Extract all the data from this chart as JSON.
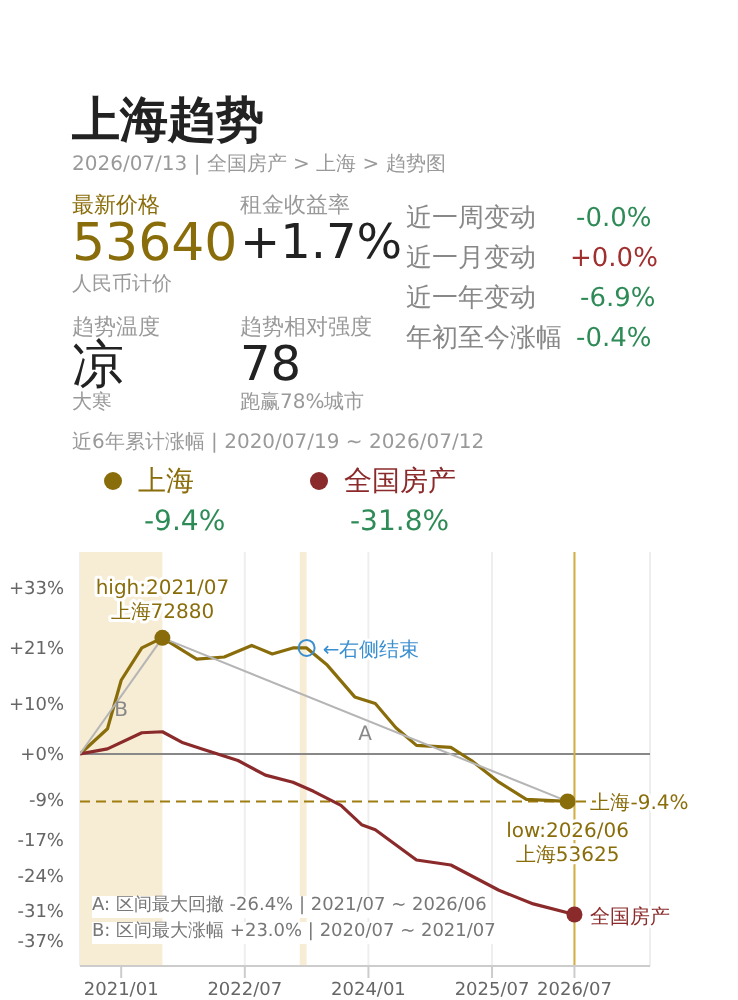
{
  "chart_data": {
    "type": "line",
    "title": "上海趋势",
    "subtitle": "2026/07/13 | 全国房产 > 上海 > 趋势图",
    "annotations": [
      "最新价格",
      "53640",
      "人民币计价",
      "租金收益率",
      "+1.7%",
      "趋势温度",
      "凉",
      "大寒",
      "趋势相对强度",
      "78",
      "跑赢78%城市",
      "近一周变动",
      "-0.0%",
      "近一月变动",
      "+0.0%",
      "近一年变动",
      "-6.9%",
      "年初至今涨幅",
      "-0.4%",
      "近6年累计涨幅 | 2020/07/19 ~ 2026/07/12",
      "-9.4%",
      "-31.8%",
      "A: 区间最大回撤 -26.4% | 2021/07 ~ 2026/06",
      "B: 区间最大涨幅 +23.0% | 2020/07 ~ 2021/07",
      {
        "text": "high:2021/07\n上海72880",
        "x": "2021-07",
        "y": 23
      },
      {
        "text": "←右侧结束",
        "x": "2023-04",
        "y": 21
      },
      {
        "text": "low:2026/06\n上海53625",
        "x": "2026-06",
        "y": -9.4
      },
      {
        "text": "上海-9.4%",
        "x": "2026-07",
        "y": -9.4
      },
      {
        "text": "全国房产",
        "x": "2026-07",
        "y": -31.8
      }
    ],
    "series": [
      {
        "name": "上海",
        "color": "#8a6d0b",
        "x": [
          "2020-07",
          "2020-11",
          "2021-01",
          "2021-04",
          "2021-07",
          "2021-12",
          "2022-04",
          "2022-08",
          "2022-11",
          "2023-02",
          "2023-04",
          "2023-07",
          "2023-11",
          "2024-02",
          "2024-05",
          "2024-08",
          "2025-01",
          "2025-04",
          "2025-08",
          "2025-12",
          "2026-06",
          "2026-07"
        ],
        "values": [
          0,
          5,
          14.6,
          21,
          23,
          18.8,
          19.2,
          21.5,
          19.8,
          21,
          21,
          17.6,
          11.3,
          10,
          5.2,
          1.7,
          1.3,
          -1.3,
          -5.6,
          -9,
          -9.4,
          -9.4
        ]
      },
      {
        "name": "全国房产",
        "color": "#8b2a2a",
        "x": [
          "2020-07",
          "2020-11",
          "2021-04",
          "2021-07",
          "2021-10",
          "2022-01",
          "2022-06",
          "2022-10",
          "2023-02",
          "2023-05",
          "2023-09",
          "2023-12",
          "2024-02",
          "2024-08",
          "2025-01",
          "2025-08",
          "2026-01",
          "2026-07"
        ],
        "values": [
          0,
          1,
          4.2,
          4.4,
          2.2,
          0.9,
          -1.3,
          -4.2,
          -5.6,
          -7.4,
          -10.2,
          -14,
          -15,
          -21,
          -22,
          -27,
          -29.7,
          -31.8
        ]
      },
      {
        "name": "B",
        "color": "#b5b5b5",
        "x": [
          "2020-07",
          "2021-07"
        ],
        "values": [
          0,
          23
        ]
      },
      {
        "name": "A",
        "color": "#b5b5b5",
        "x": [
          "2021-07",
          "2026-06"
        ],
        "values": [
          23,
          -9.4
        ]
      }
    ],
    "xlim": [
      "2020-07",
      "2027-06"
    ],
    "xticks": [
      {
        "value": "2021-01",
        "label": "2021/01"
      },
      {
        "value": "2022-07",
        "label": "2022/07"
      },
      {
        "value": "2024-01",
        "label": "2024/01"
      },
      {
        "value": "2025-07",
        "label": "2025/07"
      },
      {
        "value": "2026-07",
        "label": "2026/07"
      }
    ],
    "ylim": [
      -42,
      40
    ],
    "yticks": [
      {
        "value": 33,
        "label": "+33%"
      },
      {
        "value": 21,
        "label": "+21%"
      },
      {
        "value": 10,
        "label": "+10%"
      },
      {
        "value": 0,
        "label": "+0%"
      },
      {
        "value": -9,
        "label": "-9%"
      },
      {
        "value": -17,
        "label": "-17%"
      },
      {
        "value": -24,
        "label": "-24%"
      },
      {
        "value": -31,
        "label": "-31%"
      },
      {
        "value": -37,
        "label": "-37%"
      }
    ],
    "bands": [
      {
        "axis": "x",
        "from": "2020-07",
        "to": "2021-07",
        "color": "#f7ecd4"
      },
      {
        "axis": "x",
        "from": "2023-03",
        "to": "2023-04",
        "color": "#f7ecd4"
      }
    ],
    "ref_lines": [
      {
        "axis": "y",
        "value": 0,
        "color": "#888888"
      },
      {
        "axis": "y",
        "value": -9.4,
        "color": "#a07d10",
        "line_style": "dashed"
      },
      {
        "axis": "x",
        "value": "2026-07",
        "color": "#d4b040"
      }
    ],
    "grid": "x",
    "legend": "top left"
  }
}
